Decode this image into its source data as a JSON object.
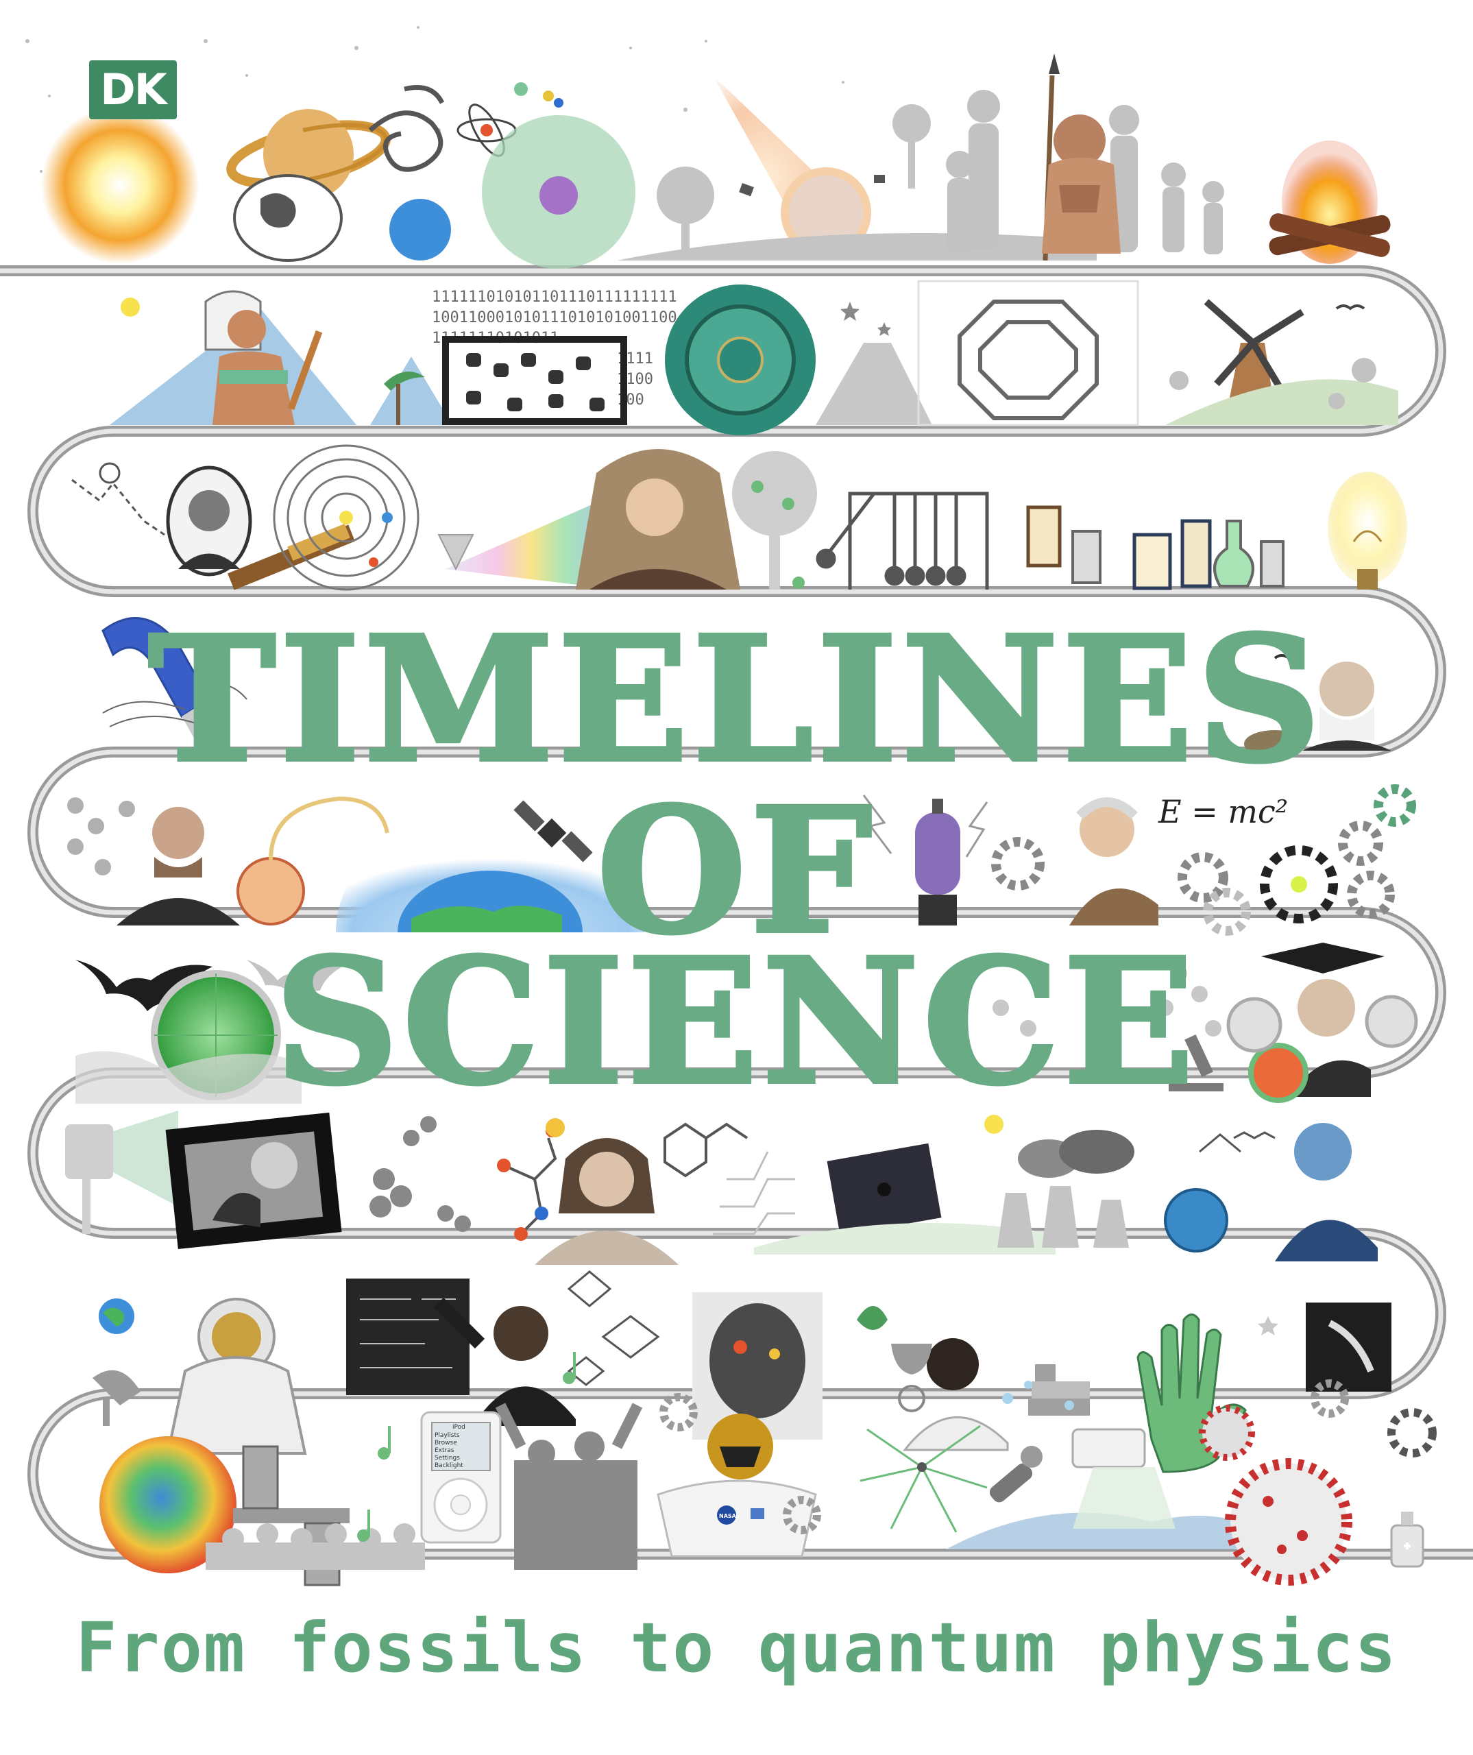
{
  "publisher": {
    "logo_text": "DK"
  },
  "title": {
    "line1": "TIMELINES",
    "line2": "OF",
    "line3": "SCIENCE"
  },
  "subtitle": "From fossils to quantum physics",
  "illustrations": {
    "binary_text": [
      "111111010101101110111111111",
      "100110001010111010101001100",
      "11111110101011",
      "1111",
      "1100",
      "100"
    ],
    "equation": "E = mc²",
    "ipod_menu": [
      "iPod",
      "Playlists",
      "Browse",
      "Extras",
      "Settings",
      "Backlight"
    ],
    "nasa_badge": "NASA"
  },
  "colors": {
    "title_green": "#69ab84",
    "subtitle_green": "#5fa67d",
    "logo_green": "#3f8a63",
    "track_grey": "#a8a8a8"
  }
}
